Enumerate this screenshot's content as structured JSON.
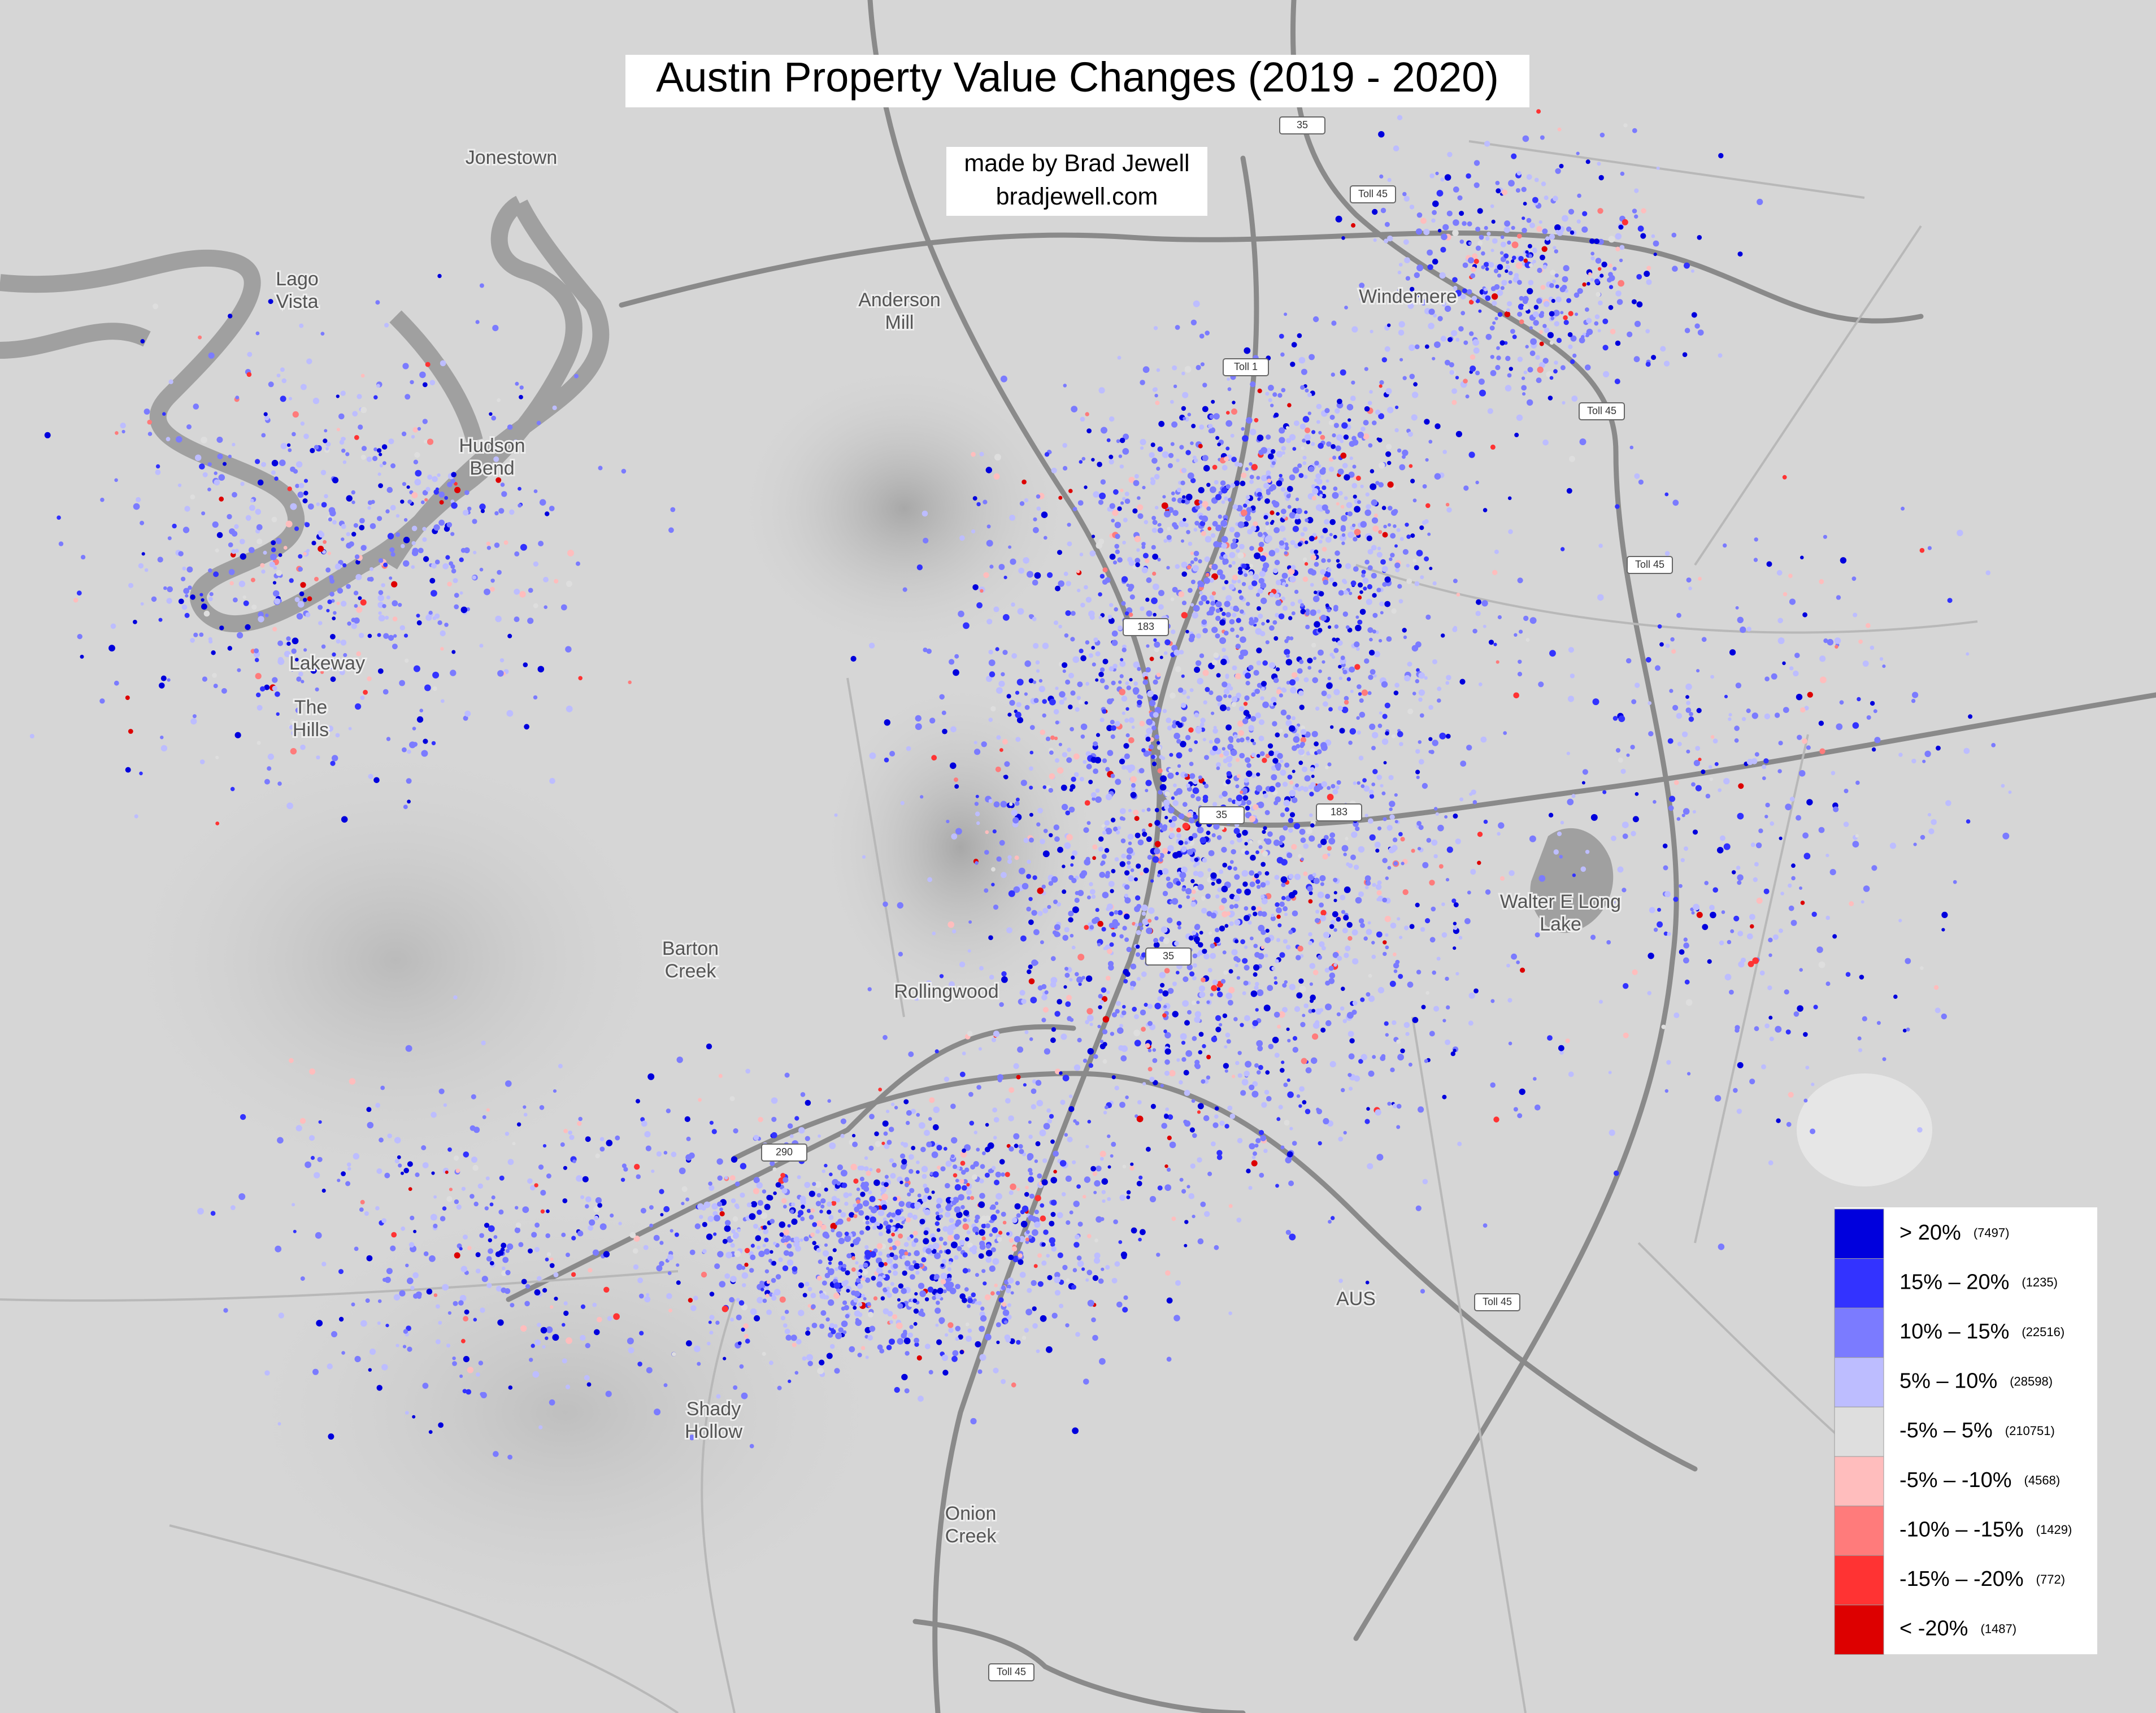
{
  "title": "Austin Property Value Changes (2019 - 2020)",
  "credit": [
    "made by Brad Jewell",
    "bradjewell.com"
  ],
  "legend": [
    {
      "label": "> 20%",
      "count": "(7497)",
      "color": "#0000dd"
    },
    {
      "label": "15% – 20%",
      "count": "(1235)",
      "color": "#3333ff"
    },
    {
      "label": "10% – 15%",
      "count": "(22516)",
      "color": "#7b7bff"
    },
    {
      "label": "5% – 10%",
      "count": "(28598)",
      "color": "#bdbdff"
    },
    {
      "label": "-5% – 5%",
      "count": "(210751)",
      "color": "#dedede"
    },
    {
      "label": "-5% – -10%",
      "count": "(4568)",
      "color": "#ffbdbd"
    },
    {
      "label": "-10% – -15%",
      "count": "(1429)",
      "color": "#ff7b7b"
    },
    {
      "label": "-15% – -20%",
      "count": "(772)",
      "color": "#ff3333"
    },
    {
      "label": "< -20%",
      "count": "(1487)",
      "color": "#dd0000"
    }
  ],
  "places": [
    {
      "lines": [
        "Jonestown"
      ]
    },
    {
      "lines": [
        "Lago",
        "Vista"
      ]
    },
    {
      "lines": [
        "Anderson",
        "Mill"
      ]
    },
    {
      "lines": [
        "Windemere"
      ]
    },
    {
      "lines": [
        "Hudson",
        "Bend"
      ]
    },
    {
      "lines": [
        "Lakeway"
      ]
    },
    {
      "lines": [
        "The",
        "Hills"
      ]
    },
    {
      "lines": [
        "Barton",
        "Creek"
      ]
    },
    {
      "lines": [
        "Rollingwood"
      ]
    },
    {
      "lines": [
        "Shady",
        "Hollow"
      ]
    },
    {
      "lines": [
        "Onion",
        "Creek"
      ]
    },
    {
      "lines": [
        "Walter E Long",
        "Lake"
      ]
    },
    {
      "lines": [
        "AUS"
      ]
    }
  ],
  "road_shields": [
    "Toll 45",
    "Toll 1",
    "Toll 45",
    "Toll 45",
    "Toll 45",
    "Toll 45",
    "35",
    "35",
    "35",
    "183",
    "183",
    "290"
  ]
}
